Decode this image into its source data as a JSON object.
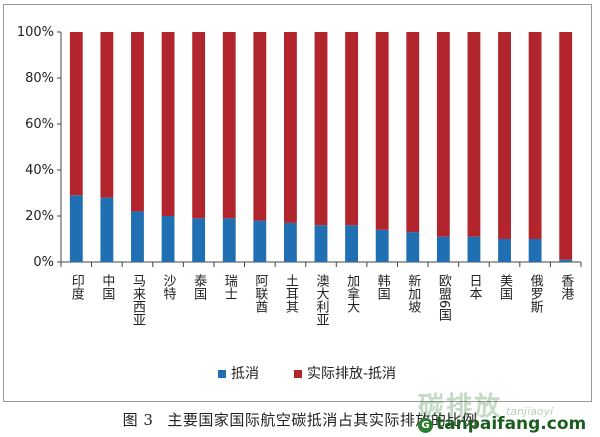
{
  "chart_data": {
    "type": "bar",
    "stacked": true,
    "categories": [
      "印度",
      "中国",
      "马来西亚",
      "沙特",
      "泰国",
      "瑞士",
      "阿联酋",
      "土耳其",
      "澳大利亚",
      "加拿大",
      "韩国",
      "新加坡",
      "欧盟6国",
      "日本",
      "美国",
      "俄罗斯",
      "香港"
    ],
    "series": [
      {
        "name": "抵消",
        "color": "#1f6fb2",
        "values": [
          29,
          28,
          22,
          20,
          19,
          19,
          18,
          17,
          16,
          16,
          14,
          13,
          11,
          11,
          10,
          10,
          1
        ]
      },
      {
        "name": "实际排放-抵消",
        "color": "#b3252d",
        "values": [
          71,
          72,
          78,
          80,
          81,
          81,
          82,
          83,
          84,
          84,
          86,
          87,
          89,
          89,
          90,
          90,
          99
        ]
      }
    ],
    "yticks": [
      "0%",
      "20%",
      "40%",
      "60%",
      "80%",
      "100%"
    ],
    "ylim": [
      0,
      100
    ],
    "grid": false,
    "legend_position": "bottom"
  },
  "caption": {
    "figure_number": "图 3",
    "text": "主要国家国际航空碳抵消占其实际排放的比例"
  },
  "watermark": {
    "chinese": "碳排放",
    "pinyin": "tanjiaoyi",
    "domain": "tanpaifang.com",
    "logo_glyph": "G"
  }
}
